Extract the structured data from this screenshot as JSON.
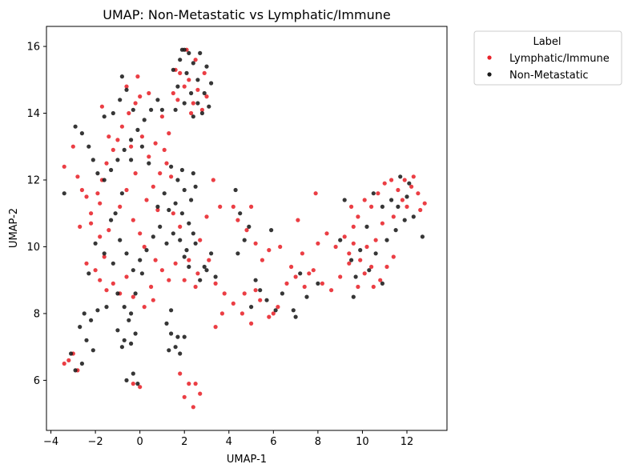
{
  "chart_data": {
    "type": "scatter",
    "title": "UMAP: Non-Metastatic vs Lymphatic/Immune",
    "xlabel": "UMAP-1",
    "ylabel": "UMAP-2",
    "xlim": [
      -4.2,
      13.8
    ],
    "ylim": [
      4.5,
      16.6
    ],
    "xticks": [
      -4,
      -2,
      0,
      2,
      4,
      6,
      8,
      10,
      12
    ],
    "yticks": [
      6,
      8,
      10,
      12,
      14,
      16
    ],
    "grid": false,
    "legend": {
      "title": "Label",
      "placement": "outside-top-right"
    },
    "colors": {
      "Lymphatic/Immune": "#e8232a",
      "Non-Metastatic": "#1a1a1a"
    },
    "series": [
      {
        "name": "Lymphatic/Immune",
        "points": [
          [
            -3.4,
            12.4
          ],
          [
            -3.0,
            13.0
          ],
          [
            -2.8,
            12.1
          ],
          [
            -2.6,
            11.7
          ],
          [
            -2.4,
            11.5
          ],
          [
            -2.2,
            11.0
          ],
          [
            -1.9,
            11.6
          ],
          [
            -1.7,
            12.0
          ],
          [
            -1.5,
            12.5
          ],
          [
            -1.2,
            12.9
          ],
          [
            -1.0,
            13.2
          ],
          [
            -0.8,
            13.6
          ],
          [
            -0.5,
            14.0
          ],
          [
            -0.2,
            14.3
          ],
          [
            0.0,
            14.5
          ],
          [
            -1.7,
            14.2
          ],
          [
            -1.4,
            13.3
          ],
          [
            -1.8,
            11.3
          ],
          [
            -2.2,
            10.7
          ],
          [
            -1.8,
            10.3
          ],
          [
            -1.4,
            10.5
          ],
          [
            -2.7,
            10.6
          ],
          [
            -2.4,
            9.5
          ],
          [
            -2.0,
            9.3
          ],
          [
            -1.6,
            9.7
          ],
          [
            -1.8,
            9.0
          ],
          [
            -1.5,
            8.7
          ],
          [
            -1.2,
            8.9
          ],
          [
            -0.9,
            8.6
          ],
          [
            -0.6,
            9.1
          ],
          [
            -0.3,
            8.5
          ],
          [
            0.2,
            8.2
          ],
          [
            0.5,
            8.8
          ],
          [
            0.7,
            9.6
          ],
          [
            1.0,
            9.3
          ],
          [
            1.3,
            9.0
          ],
          [
            0.6,
            8.4
          ],
          [
            0.3,
            11.4
          ],
          [
            0.6,
            11.8
          ],
          [
            0.9,
            12.2
          ],
          [
            1.2,
            12.5
          ],
          [
            1.4,
            12.1
          ],
          [
            0.8,
            11.1
          ],
          [
            1.5,
            11.0
          ],
          [
            1.8,
            10.6
          ],
          [
            0.4,
            12.7
          ],
          [
            0.7,
            13.1
          ],
          [
            1.1,
            12.9
          ],
          [
            -0.2,
            12.2
          ],
          [
            -0.6,
            11.7
          ],
          [
            -0.9,
            11.2
          ],
          [
            -0.3,
            10.8
          ],
          [
            0.0,
            10.4
          ],
          [
            0.2,
            10.0
          ],
          [
            -0.1,
            15.1
          ],
          [
            0.4,
            14.6
          ],
          [
            -0.6,
            14.8
          ],
          [
            1.0,
            13.9
          ],
          [
            1.3,
            13.4
          ],
          [
            0.1,
            13.3
          ],
          [
            -0.4,
            13.0
          ],
          [
            1.5,
            14.6
          ],
          [
            1.7,
            14.4
          ],
          [
            2.0,
            14.8
          ],
          [
            2.2,
            15.0
          ],
          [
            2.4,
            14.3
          ],
          [
            2.6,
            14.7
          ],
          [
            2.8,
            14.1
          ],
          [
            3.0,
            14.5
          ],
          [
            1.8,
            15.2
          ],
          [
            2.5,
            15.6
          ],
          [
            2.1,
            15.9
          ],
          [
            1.6,
            15.3
          ],
          [
            2.9,
            15.2
          ],
          [
            2.3,
            14.0
          ],
          [
            3.3,
            12.0
          ],
          [
            3.6,
            11.2
          ],
          [
            3.0,
            10.9
          ],
          [
            2.7,
            10.2
          ],
          [
            3.1,
            9.6
          ],
          [
            2.6,
            9.2
          ],
          [
            2.2,
            9.6
          ],
          [
            2.0,
            9.0
          ],
          [
            1.6,
            9.5
          ],
          [
            2.5,
            8.8
          ],
          [
            3.4,
            8.9
          ],
          [
            3.8,
            8.6
          ],
          [
            4.2,
            8.3
          ],
          [
            4.6,
            8.0
          ],
          [
            5.0,
            7.7
          ],
          [
            5.4,
            8.4
          ],
          [
            5.8,
            7.9
          ],
          [
            6.2,
            8.2
          ],
          [
            6.6,
            8.9
          ],
          [
            7.0,
            9.1
          ],
          [
            7.4,
            8.8
          ],
          [
            7.8,
            9.3
          ],
          [
            8.2,
            8.9
          ],
          [
            8.6,
            8.7
          ],
          [
            9.0,
            9.1
          ],
          [
            9.4,
            9.5
          ],
          [
            4.7,
            8.6
          ],
          [
            3.7,
            8.0
          ],
          [
            3.4,
            7.6
          ],
          [
            5.2,
            8.7
          ],
          [
            6.0,
            8.0
          ],
          [
            4.4,
            10.8
          ],
          [
            4.8,
            10.5
          ],
          [
            5.2,
            10.1
          ],
          [
            5.5,
            9.6
          ],
          [
            5.8,
            9.9
          ],
          [
            6.3,
            10.0
          ],
          [
            6.8,
            9.4
          ],
          [
            7.3,
            9.8
          ],
          [
            7.6,
            9.2
          ],
          [
            8.0,
            10.1
          ],
          [
            8.4,
            10.4
          ],
          [
            8.8,
            10.0
          ],
          [
            9.2,
            10.3
          ],
          [
            9.6,
            10.6
          ],
          [
            7.1,
            10.8
          ],
          [
            5.0,
            11.2
          ],
          [
            4.2,
            11.2
          ],
          [
            7.9,
            11.6
          ],
          [
            9.6,
            10.1
          ],
          [
            9.5,
            11.2
          ],
          [
            9.8,
            10.9
          ],
          [
            10.1,
            11.4
          ],
          [
            10.4,
            11.2
          ],
          [
            10.7,
            11.6
          ],
          [
            11.0,
            11.9
          ],
          [
            11.3,
            12.0
          ],
          [
            11.6,
            11.7
          ],
          [
            11.9,
            12.0
          ],
          [
            12.2,
            11.8
          ],
          [
            12.5,
            11.6
          ],
          [
            12.8,
            11.3
          ],
          [
            12.3,
            12.1
          ],
          [
            11.8,
            11.4
          ],
          [
            11.4,
            10.9
          ],
          [
            10.9,
            10.7
          ],
          [
            10.6,
            10.2
          ],
          [
            10.2,
            10.0
          ],
          [
            9.9,
            9.6
          ],
          [
            10.1,
            9.2
          ],
          [
            10.4,
            9.4
          ],
          [
            10.8,
            9.0
          ],
          [
            11.1,
            9.4
          ],
          [
            11.4,
            9.7
          ],
          [
            10.5,
            8.8
          ],
          [
            9.4,
            9.8
          ],
          [
            9.8,
            8.8
          ],
          [
            12.0,
            11.2
          ],
          [
            12.6,
            11.1
          ],
          [
            -3.4,
            6.5
          ],
          [
            -3.0,
            6.8
          ],
          [
            -2.8,
            6.3
          ],
          [
            -3.2,
            6.6
          ],
          [
            0.0,
            5.8
          ],
          [
            -0.3,
            5.9
          ],
          [
            1.8,
            6.2
          ],
          [
            2.2,
            5.9
          ],
          [
            2.5,
            5.9
          ],
          [
            2.7,
            5.6
          ],
          [
            2.0,
            5.5
          ],
          [
            2.4,
            5.2
          ]
        ]
      },
      {
        "name": "Non-Metastatic",
        "points": [
          [
            -3.4,
            11.6
          ],
          [
            -2.9,
            13.6
          ],
          [
            -2.6,
            13.4
          ],
          [
            -2.3,
            13.0
          ],
          [
            -2.1,
            12.6
          ],
          [
            -1.9,
            12.2
          ],
          [
            -1.6,
            12.0
          ],
          [
            -1.3,
            12.3
          ],
          [
            -1.0,
            12.6
          ],
          [
            -0.7,
            12.9
          ],
          [
            -0.4,
            13.2
          ],
          [
            -0.1,
            13.5
          ],
          [
            0.2,
            13.8
          ],
          [
            0.5,
            14.1
          ],
          [
            0.8,
            14.4
          ],
          [
            1.0,
            14.1
          ],
          [
            -1.2,
            14.0
          ],
          [
            -0.9,
            14.4
          ],
          [
            -0.6,
            14.7
          ],
          [
            -0.3,
            14.1
          ],
          [
            0.1,
            13.0
          ],
          [
            0.4,
            12.5
          ],
          [
            -0.8,
            11.6
          ],
          [
            -1.1,
            11.0
          ],
          [
            -1.3,
            10.8
          ],
          [
            -0.4,
            12.6
          ],
          [
            -0.8,
            15.1
          ],
          [
            -1.6,
            13.9
          ],
          [
            -2.0,
            10.1
          ],
          [
            -1.6,
            9.8
          ],
          [
            -1.2,
            9.5
          ],
          [
            -0.9,
            10.2
          ],
          [
            -0.6,
            9.8
          ],
          [
            -0.3,
            9.3
          ],
          [
            0.0,
            9.6
          ],
          [
            0.3,
            9.9
          ],
          [
            0.6,
            10.3
          ],
          [
            0.9,
            10.6
          ],
          [
            1.2,
            10.1
          ],
          [
            -1.0,
            8.6
          ],
          [
            -0.7,
            8.2
          ],
          [
            -0.4,
            8.0
          ],
          [
            -0.2,
            8.6
          ],
          [
            0.1,
            9.2
          ],
          [
            -2.3,
            9.2
          ],
          [
            -1.9,
            8.1
          ],
          [
            -2.2,
            7.8
          ],
          [
            -2.5,
            8.0
          ],
          [
            -2.7,
            7.6
          ],
          [
            -2.4,
            7.2
          ],
          [
            -2.1,
            6.9
          ],
          [
            -1.5,
            8.2
          ],
          [
            -1.0,
            7.5
          ],
          [
            -0.7,
            7.2
          ],
          [
            -0.5,
            7.8
          ],
          [
            -0.2,
            7.4
          ],
          [
            -0.8,
            7.0
          ],
          [
            -0.4,
            7.1
          ],
          [
            -0.6,
            6.0
          ],
          [
            -0.3,
            6.2
          ],
          [
            -0.1,
            5.9
          ],
          [
            -2.6,
            6.5
          ],
          [
            -2.9,
            6.3
          ],
          [
            -3.1,
            6.8
          ],
          [
            1.4,
            7.4
          ],
          [
            1.6,
            7.0
          ],
          [
            1.3,
            6.9
          ],
          [
            1.7,
            7.3
          ],
          [
            2.0,
            7.3
          ],
          [
            1.2,
            7.7
          ],
          [
            1.4,
            8.1
          ],
          [
            1.8,
            6.8
          ],
          [
            1.3,
            11.1
          ],
          [
            1.6,
            11.3
          ],
          [
            1.9,
            11.0
          ],
          [
            2.2,
            10.7
          ],
          [
            1.5,
            10.4
          ],
          [
            1.8,
            10.2
          ],
          [
            2.1,
            9.9
          ],
          [
            2.4,
            10.4
          ],
          [
            1.4,
            12.4
          ],
          [
            1.7,
            12.0
          ],
          [
            2.0,
            11.7
          ],
          [
            2.3,
            11.4
          ],
          [
            1.1,
            11.6
          ],
          [
            0.8,
            11.2
          ],
          [
            2.5,
            11.8
          ],
          [
            2.4,
            12.2
          ],
          [
            1.9,
            12.3
          ],
          [
            1.5,
            15.3
          ],
          [
            1.8,
            15.6
          ],
          [
            2.1,
            15.2
          ],
          [
            2.4,
            15.5
          ],
          [
            2.7,
            15.8
          ],
          [
            3.0,
            15.4
          ],
          [
            3.2,
            14.9
          ],
          [
            2.9,
            14.6
          ],
          [
            2.6,
            14.3
          ],
          [
            2.3,
            14.6
          ],
          [
            2.0,
            14.3
          ],
          [
            1.7,
            14.8
          ],
          [
            1.9,
            15.9
          ],
          [
            2.2,
            15.8
          ],
          [
            2.6,
            15.0
          ],
          [
            3.1,
            14.2
          ],
          [
            2.8,
            14.0
          ],
          [
            2.4,
            13.9
          ],
          [
            1.6,
            14.1
          ],
          [
            2.0,
            15.9
          ],
          [
            2.9,
            9.4
          ],
          [
            3.2,
            9.8
          ],
          [
            2.7,
            9.0
          ],
          [
            3.0,
            9.3
          ],
          [
            2.2,
            9.4
          ],
          [
            2.5,
            10.1
          ],
          [
            2.0,
            9.7
          ],
          [
            3.4,
            9.1
          ],
          [
            4.3,
            11.7
          ],
          [
            4.5,
            11.0
          ],
          [
            4.7,
            10.2
          ],
          [
            4.4,
            9.8
          ],
          [
            4.9,
            10.6
          ],
          [
            5.2,
            9.0
          ],
          [
            5.0,
            8.2
          ],
          [
            5.4,
            8.7
          ],
          [
            5.7,
            8.4
          ],
          [
            6.1,
            8.1
          ],
          [
            6.4,
            8.6
          ],
          [
            6.9,
            8.1
          ],
          [
            7.2,
            9.2
          ],
          [
            7.5,
            8.5
          ],
          [
            7.0,
            7.9
          ],
          [
            8.0,
            8.9
          ],
          [
            5.9,
            10.5
          ],
          [
            9.2,
            11.4
          ],
          [
            9.0,
            10.2
          ],
          [
            9.5,
            9.6
          ],
          [
            9.9,
            9.9
          ],
          [
            10.3,
            9.3
          ],
          [
            10.6,
            9.8
          ],
          [
            11.1,
            10.2
          ],
          [
            11.5,
            10.5
          ],
          [
            11.9,
            10.8
          ],
          [
            12.3,
            10.9
          ],
          [
            12.7,
            10.3
          ],
          [
            11.7,
            12.1
          ],
          [
            12.0,
            11.5
          ],
          [
            11.3,
            11.4
          ],
          [
            10.9,
            11.2
          ],
          [
            10.5,
            11.6
          ],
          [
            10.2,
            10.6
          ],
          [
            9.7,
            9.1
          ],
          [
            9.6,
            8.5
          ],
          [
            10.9,
            8.9
          ],
          [
            12.1,
            11.9
          ],
          [
            11.6,
            11.2
          ]
        ]
      }
    ]
  }
}
